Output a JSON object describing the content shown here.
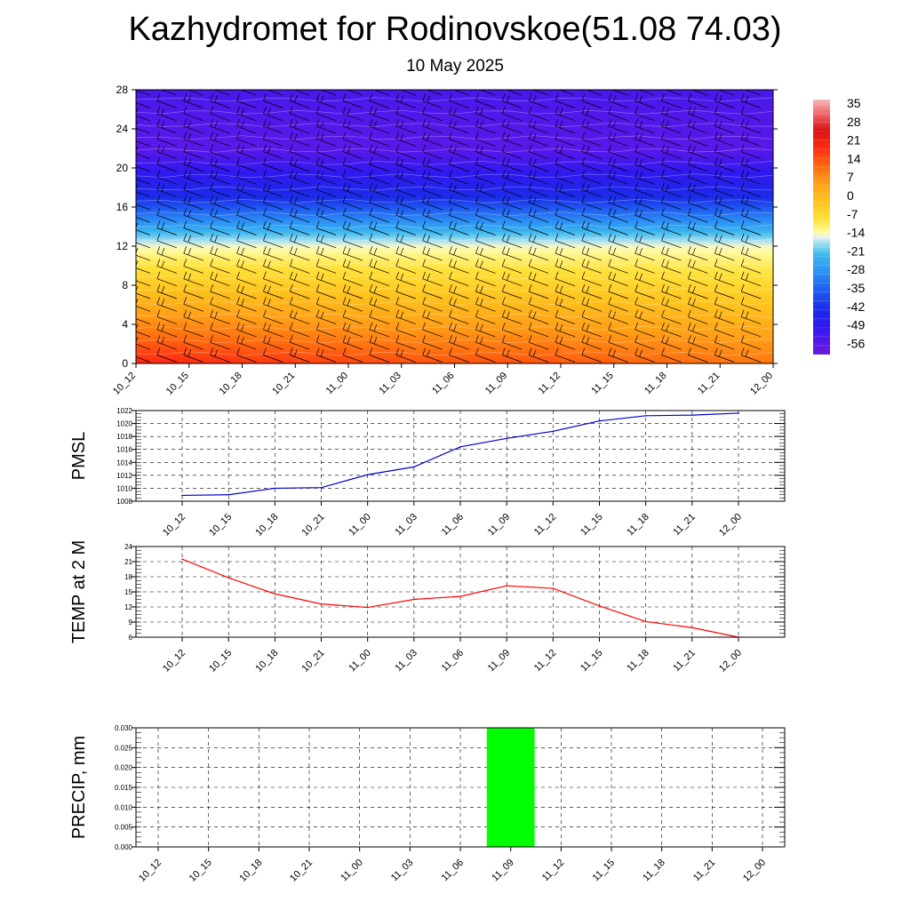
{
  "title": "Kazhydromet for Rodinovskoe(51.08 74.03)",
  "subtitle": "10 May 2025",
  "chart_data": [
    {
      "type": "heatmap",
      "name": "cross-section",
      "xlabel": "",
      "ylabel": "",
      "x_ticks": [
        "10_12",
        "10_15",
        "10_18",
        "10_21",
        "11_00",
        "11_03",
        "11_06",
        "11_09",
        "11_12",
        "11_15",
        "11_18",
        "11_21",
        "12_00"
      ],
      "y_ticks": [
        0,
        4,
        8,
        12,
        16,
        20,
        24,
        28
      ],
      "ylim": [
        0,
        28
      ],
      "colorbar": {
        "labels": [
          35,
          28,
          21,
          14,
          7,
          0,
          -7,
          -14,
          -21,
          -28,
          -35,
          -42,
          -49,
          -56
        ],
        "range": [
          -60,
          40
        ]
      },
      "surface_temperature": [
        22,
        21,
        20,
        19,
        18,
        17,
        16,
        17,
        16,
        15,
        14,
        13,
        12
      ],
      "freezing_level": 12,
      "wind_barbs": true
    },
    {
      "type": "line",
      "name": "PMSL",
      "ylabel": "PMSL",
      "x": [
        "10_12",
        "10_15",
        "10_18",
        "10_21",
        "11_00",
        "11_03",
        "11_06",
        "11_09",
        "11_12",
        "11_15",
        "11_18",
        "11_21",
        "12_00"
      ],
      "series": [
        {
          "values": [
            1008.9,
            1009.0,
            1010.0,
            1010.1,
            1012.1,
            1013.3,
            1016.4,
            1017.7,
            1018.8,
            1020.4,
            1021.2,
            1021.3,
            1021.6
          ],
          "color": "#0000cc"
        }
      ],
      "ylim": [
        1008,
        1022
      ],
      "y_ticks": [
        1008,
        1010,
        1012,
        1014,
        1016,
        1018,
        1020,
        1022
      ],
      "grid": true
    },
    {
      "type": "line",
      "name": "TEMP at 2 M",
      "ylabel": "TEMP at 2 M",
      "x": [
        "10_12",
        "10_15",
        "10_18",
        "10_21",
        "11_00",
        "11_03",
        "11_06",
        "11_09",
        "11_12",
        "11_15",
        "11_18",
        "11_21",
        "12_00"
      ],
      "series": [
        {
          "values": [
            21.5,
            17.8,
            14.6,
            12.6,
            11.9,
            13.5,
            14.1,
            16.2,
            15.7,
            12.2,
            9.1,
            7.9,
            6.0
          ],
          "color": "#ff0000"
        }
      ],
      "ylim": [
        6,
        24
      ],
      "y_ticks": [
        6,
        9,
        12,
        15,
        18,
        21,
        24
      ],
      "grid": true
    },
    {
      "type": "bar",
      "name": "PRECIP, mm",
      "ylabel": "PRECIP, mm",
      "categories": [
        "10_12",
        "10_15",
        "10_18",
        "10_21",
        "11_00",
        "11_03",
        "11_06",
        "11_09",
        "11_12",
        "11_15",
        "11_18",
        "11_21",
        "12_00"
      ],
      "values": [
        0,
        0,
        0,
        0,
        0,
        0,
        0,
        0.03,
        0,
        0,
        0,
        0,
        0
      ],
      "color": "#00ff00",
      "ylim": [
        0,
        0.03
      ],
      "y_ticks": [
        "0.000",
        "0.005",
        "0.010",
        "0.015",
        "0.020",
        "0.025",
        "0.030"
      ],
      "grid": true
    }
  ]
}
